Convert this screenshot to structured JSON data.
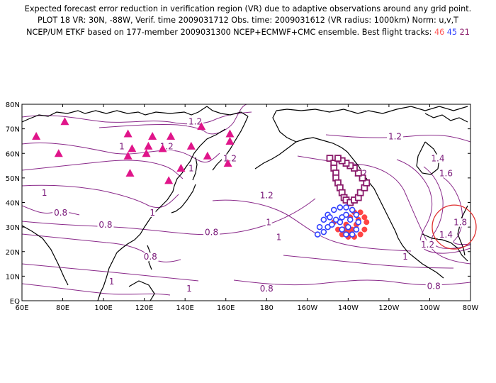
{
  "header": {
    "line1": "Expected forecast error reduction in verification region (VR) due to adaptive observations around any grid point.",
    "line2": "PLOT 18 VR: 30N, -88W, Verif. time 2009031712 Obs. time: 2009031612 (VR radius: 1000km) Norm: u,v,T",
    "line3_prefix": "NCEP/UM ETKF based on 177-member 2009031300 NCEP+ECMWF+CMC ensemble. Best flight tracks:",
    "track_a": "46",
    "track_b": "45",
    "track_c": "21"
  },
  "map": {
    "xticks": [
      {
        "lon": 60,
        "label": "60E"
      },
      {
        "lon": 80,
        "label": "80E"
      },
      {
        "lon": 100,
        "label": "100E"
      },
      {
        "lon": 120,
        "label": "120E"
      },
      {
        "lon": 140,
        "label": "140E"
      },
      {
        "lon": 160,
        "label": "160E"
      },
      {
        "lon": 180,
        "label": "180"
      },
      {
        "lon": 200,
        "label": "160W"
      },
      {
        "lon": 220,
        "label": "140W"
      },
      {
        "lon": 240,
        "label": "120W"
      },
      {
        "lon": 260,
        "label": "100W"
      },
      {
        "lon": 280,
        "label": "80W"
      }
    ],
    "yticks": [
      {
        "lat": 0,
        "label": "EQ"
      },
      {
        "lat": 10,
        "label": "10N"
      },
      {
        "lat": 20,
        "label": "20N"
      },
      {
        "lat": 30,
        "label": "30N"
      },
      {
        "lat": 40,
        "label": "40N"
      },
      {
        "lat": 50,
        "label": "50N"
      },
      {
        "lat": 60,
        "label": "60N"
      },
      {
        "lat": 70,
        "label": "70N"
      },
      {
        "lat": 80,
        "label": "80N"
      }
    ],
    "contour_labels": [
      {
        "text": "1.2",
        "lon": 145,
        "lat": 72
      },
      {
        "text": "1.2",
        "lon": 243,
        "lat": 66
      },
      {
        "text": "1",
        "lon": 109,
        "lat": 62
      },
      {
        "text": "1.2",
        "lon": 131,
        "lat": 62
      },
      {
        "text": "1",
        "lon": 143,
        "lat": 53
      },
      {
        "text": "1.2",
        "lon": 162,
        "lat": 57
      },
      {
        "text": "1",
        "lon": 71,
        "lat": 43
      },
      {
        "text": "1.2",
        "lon": 180,
        "lat": 42
      },
      {
        "text": "1",
        "lon": 124,
        "lat": 35
      },
      {
        "text": "0.8",
        "lon": 79,
        "lat": 35
      },
      {
        "text": "0.8",
        "lon": 101,
        "lat": 30
      },
      {
        "text": "0.8",
        "lon": 153,
        "lat": 27
      },
      {
        "text": "1",
        "lon": 181,
        "lat": 31
      },
      {
        "text": "1",
        "lon": 186,
        "lat": 25
      },
      {
        "text": "1.2",
        "lon": 226,
        "lat": 51
      },
      {
        "text": "1.4",
        "lon": 264,
        "lat": 57
      },
      {
        "text": "1.6",
        "lon": 268,
        "lat": 51
      },
      {
        "text": "1.8",
        "lon": 275,
        "lat": 31
      },
      {
        "text": "1.4",
        "lon": 268,
        "lat": 26
      },
      {
        "text": "1.2",
        "lon": 259,
        "lat": 22
      },
      {
        "text": "1",
        "lon": 248,
        "lat": 17
      },
      {
        "text": "0.8",
        "lon": 123,
        "lat": 17
      },
      {
        "text": "1",
        "lon": 104,
        "lat": 7
      },
      {
        "text": "1",
        "lon": 142,
        "lat": 4
      },
      {
        "text": "0.8",
        "lon": 180,
        "lat": 4
      },
      {
        "text": "0.8",
        "lon": 262,
        "lat": 5
      }
    ],
    "sites": [
      {
        "lon": 67,
        "lat": 67
      },
      {
        "lon": 78,
        "lat": 60
      },
      {
        "lon": 81,
        "lat": 73
      },
      {
        "lon": 112,
        "lat": 68
      },
      {
        "lon": 112,
        "lat": 59
      },
      {
        "lon": 113,
        "lat": 52
      },
      {
        "lon": 114,
        "lat": 62
      },
      {
        "lon": 121,
        "lat": 60
      },
      {
        "lon": 122,
        "lat": 63
      },
      {
        "lon": 124,
        "lat": 67
      },
      {
        "lon": 129,
        "lat": 62
      },
      {
        "lon": 133,
        "lat": 67
      },
      {
        "lon": 132,
        "lat": 49
      },
      {
        "lon": 138,
        "lat": 54
      },
      {
        "lon": 143,
        "lat": 63
      },
      {
        "lon": 148,
        "lat": 71
      },
      {
        "lon": 151,
        "lat": 59
      },
      {
        "lon": 162,
        "lat": 65
      },
      {
        "lon": 162,
        "lat": 68
      },
      {
        "lon": 161,
        "lat": 56
      }
    ],
    "track_21": [
      {
        "lon": 211,
        "lat": 58
      },
      {
        "lon": 213,
        "lat": 56
      },
      {
        "lon": 213,
        "lat": 54
      },
      {
        "lon": 214,
        "lat": 52
      },
      {
        "lon": 214,
        "lat": 50
      },
      {
        "lon": 215,
        "lat": 48
      },
      {
        "lon": 216,
        "lat": 46
      },
      {
        "lon": 217,
        "lat": 44
      },
      {
        "lon": 218,
        "lat": 42
      },
      {
        "lon": 219,
        "lat": 41
      },
      {
        "lon": 221,
        "lat": 40
      },
      {
        "lon": 223,
        "lat": 41
      },
      {
        "lon": 225,
        "lat": 42
      },
      {
        "lon": 226,
        "lat": 44
      },
      {
        "lon": 228,
        "lat": 46
      },
      {
        "lon": 229,
        "lat": 48
      },
      {
        "lon": 227,
        "lat": 50
      },
      {
        "lon": 225,
        "lat": 52
      },
      {
        "lon": 223,
        "lat": 54
      },
      {
        "lon": 221,
        "lat": 55
      },
      {
        "lon": 219,
        "lat": 56
      },
      {
        "lon": 217,
        "lat": 57
      },
      {
        "lon": 215,
        "lat": 58
      }
    ],
    "track_46": [
      {
        "lon": 213,
        "lat": 32
      },
      {
        "lon": 215,
        "lat": 29
      },
      {
        "lon": 217,
        "lat": 27
      },
      {
        "lon": 220,
        "lat": 26
      },
      {
        "lon": 223,
        "lat": 26
      },
      {
        "lon": 226,
        "lat": 27
      },
      {
        "lon": 228,
        "lat": 29
      },
      {
        "lon": 229,
        "lat": 32
      },
      {
        "lon": 228,
        "lat": 34
      },
      {
        "lon": 226,
        "lat": 36
      },
      {
        "lon": 223,
        "lat": 36
      },
      {
        "lon": 221,
        "lat": 34
      },
      {
        "lon": 219,
        "lat": 31
      },
      {
        "lon": 218,
        "lat": 29
      },
      {
        "lon": 220,
        "lat": 28
      },
      {
        "lon": 222,
        "lat": 29
      },
      {
        "lon": 224,
        "lat": 31
      },
      {
        "lon": 225,
        "lat": 33
      }
    ],
    "track_45": [
      {
        "lon": 205,
        "lat": 27
      },
      {
        "lon": 206,
        "lat": 30
      },
      {
        "lon": 208,
        "lat": 33
      },
      {
        "lon": 210,
        "lat": 35
      },
      {
        "lon": 213,
        "lat": 37
      },
      {
        "lon": 216,
        "lat": 38
      },
      {
        "lon": 219,
        "lat": 38
      },
      {
        "lon": 222,
        "lat": 37
      },
      {
        "lon": 224,
        "lat": 35
      },
      {
        "lon": 225,
        "lat": 32
      },
      {
        "lon": 224,
        "lat": 29
      },
      {
        "lon": 222,
        "lat": 27
      },
      {
        "lon": 219,
        "lat": 27
      },
      {
        "lon": 217,
        "lat": 29
      },
      {
        "lon": 216,
        "lat": 32
      },
      {
        "lon": 217,
        "lat": 34
      },
      {
        "lon": 219,
        "lat": 35
      },
      {
        "lon": 221,
        "lat": 33
      },
      {
        "lon": 220,
        "lat": 30
      },
      {
        "lon": 208,
        "lat": 28
      },
      {
        "lon": 210,
        "lat": 30
      },
      {
        "lon": 212,
        "lat": 31
      },
      {
        "lon": 214,
        "lat": 33
      },
      {
        "lon": 211,
        "lat": 34
      }
    ],
    "verification_region": {
      "lat": 30,
      "lon": -88,
      "radius_km": 1000
    },
    "colors": {
      "contour": "#8a2a8a",
      "coast": "#000000",
      "site": "#e0158a",
      "track_21": "#8a1a6a",
      "track_46": "#ff4444",
      "track_45": "#2f3fff",
      "vr_circle": "#e03030"
    }
  }
}
